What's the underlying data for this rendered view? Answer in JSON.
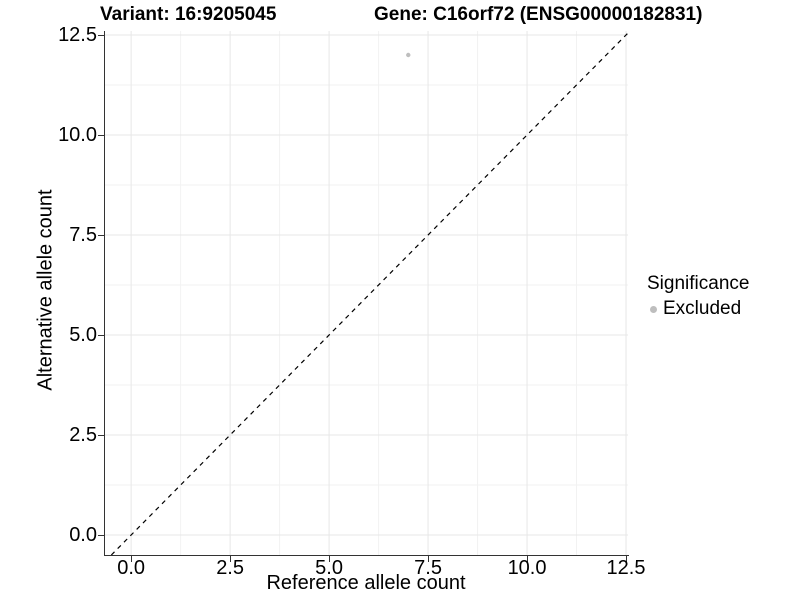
{
  "chart_data": {
    "type": "scatter",
    "title_left": "Variant: 16:9205045",
    "title_right": "Gene: C16orf72 (ENSG00000182831)",
    "xlabel": "Reference allele count",
    "ylabel": "Alternative allele count",
    "xlim": [
      -0.66,
      12.55
    ],
    "ylim": [
      -0.5,
      12.6
    ],
    "x_ticks": {
      "values": [
        0,
        2.5,
        5,
        7.5,
        10,
        12.5
      ],
      "labels": [
        "0.0",
        "2.5",
        "5.0",
        "7.5",
        "10.0",
        "12.5"
      ]
    },
    "y_ticks": {
      "values": [
        0,
        2.5,
        5,
        7.5,
        10,
        12.5
      ],
      "labels": [
        "0.0",
        "2.5",
        "5.0",
        "7.5",
        "10.0",
        "12.5"
      ]
    },
    "minor_ticks": [
      1.25,
      3.75,
      6.25,
      8.75,
      11.25
    ],
    "grid": true,
    "series": [
      {
        "name": "Excluded",
        "color": "#bebebe",
        "points": [
          {
            "x": 7,
            "y": 12
          }
        ]
      }
    ],
    "reference_line": {
      "slope": 1,
      "intercept": 0,
      "style": "dashed",
      "color": "#000000"
    },
    "legend": {
      "position": "right",
      "title": "Significance",
      "items": [
        {
          "label": "Excluded",
          "color": "#bebebe"
        }
      ]
    }
  },
  "colors": {
    "background": "#ffffff",
    "grid_major": "#e7e7e7",
    "grid_minor": "#f2f2f2",
    "axis": "#333333",
    "text": "#000000"
  }
}
